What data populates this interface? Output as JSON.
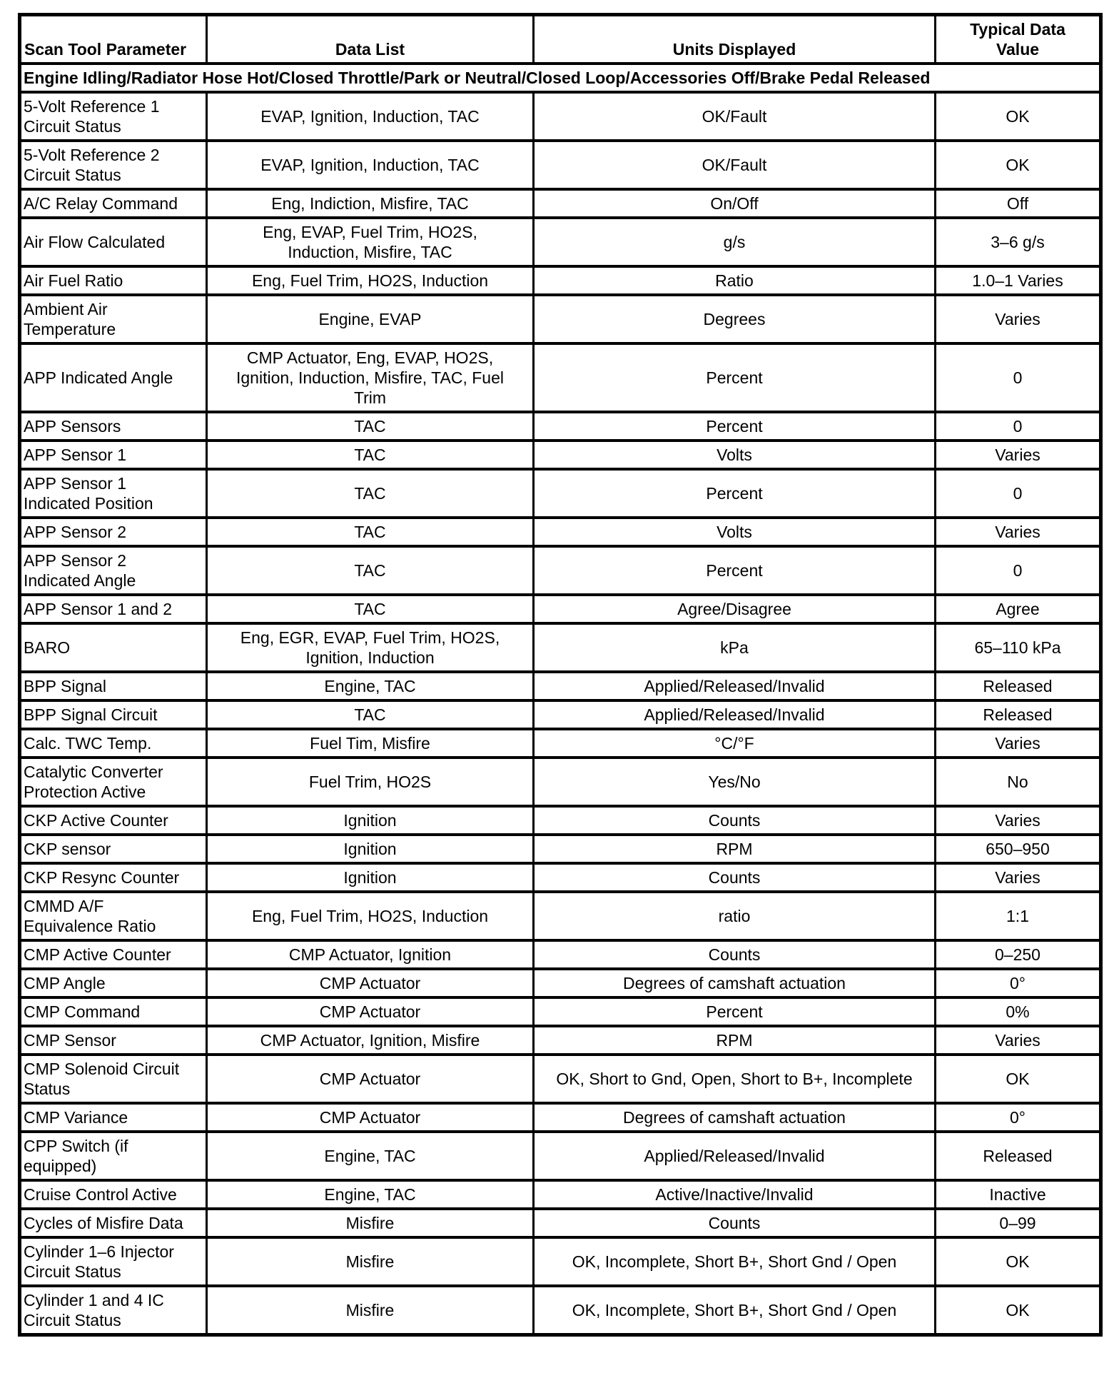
{
  "table": {
    "headers": [
      "Scan Tool Parameter",
      "Data List",
      "Units Displayed",
      "Typical Data\nValue"
    ],
    "section": "Engine Idling/Radiator Hose Hot/Closed Throttle/Park or Neutral/Closed Loop/Accessories Off/Brake Pedal Released",
    "rows": [
      [
        "5-Volt Reference 1\nCircuit Status",
        "EVAP, Ignition, Induction, TAC",
        "OK/Fault",
        "OK"
      ],
      [
        "5-Volt Reference 2\nCircuit Status",
        "EVAP, Ignition, Induction, TAC",
        "OK/Fault",
        "OK"
      ],
      [
        "A/C Relay Command",
        "Eng, Indiction, Misfire, TAC",
        "On/Off",
        "Off"
      ],
      [
        "Air Flow Calculated",
        "Eng, EVAP, Fuel Trim, HO2S,\nInduction, Misfire, TAC",
        "g/s",
        "3–6 g/s"
      ],
      [
        "Air Fuel Ratio",
        "Eng, Fuel Trim, HO2S, Induction",
        "Ratio",
        "1.0–1 Varies"
      ],
      [
        "Ambient Air\nTemperature",
        "Engine, EVAP",
        "Degrees",
        "Varies"
      ],
      [
        "APP Indicated Angle",
        "CMP Actuator, Eng, EVAP, HO2S,\nIgnition, Induction, Misfire, TAC, Fuel\nTrim",
        "Percent",
        "0"
      ],
      [
        "APP Sensors",
        "TAC",
        "Percent",
        "0"
      ],
      [
        "APP Sensor 1",
        "TAC",
        "Volts",
        "Varies"
      ],
      [
        "APP Sensor 1\nIndicated Position",
        "TAC",
        "Percent",
        "0"
      ],
      [
        "APP Sensor 2",
        "TAC",
        "Volts",
        "Varies"
      ],
      [
        "APP Sensor 2\nIndicated Angle",
        "TAC",
        "Percent",
        "0"
      ],
      [
        "APP Sensor 1 and 2",
        "TAC",
        "Agree/Disagree",
        "Agree"
      ],
      [
        "BARO",
        "Eng, EGR, EVAP, Fuel Trim, HO2S,\nIgnition, Induction",
        "kPa",
        "65–110 kPa"
      ],
      [
        "BPP Signal",
        "Engine, TAC",
        "Applied/Released/Invalid",
        "Released"
      ],
      [
        "BPP Signal Circuit",
        "TAC",
        "Applied/Released/Invalid",
        "Released"
      ],
      [
        "Calc. TWC Temp.",
        "Fuel Tim, Misfire",
        "°C/°F",
        "Varies"
      ],
      [
        "Catalytic Converter\nProtection Active",
        "Fuel Trim, HO2S",
        "Yes/No",
        "No"
      ],
      [
        "CKP Active Counter",
        "Ignition",
        "Counts",
        "Varies"
      ],
      [
        "CKP sensor",
        "Ignition",
        "RPM",
        "650–950"
      ],
      [
        "CKP Resync Counter",
        "Ignition",
        "Counts",
        "Varies"
      ],
      [
        "CMMD A/F\nEquivalence Ratio",
        "Eng, Fuel Trim, HO2S, Induction",
        "ratio",
        "1:1"
      ],
      [
        "CMP Active Counter",
        "CMP Actuator, Ignition",
        "Counts",
        "0–250"
      ],
      [
        "CMP Angle",
        "CMP Actuator",
        "Degrees of camshaft actuation",
        "0°"
      ],
      [
        "CMP Command",
        "CMP Actuator",
        "Percent",
        "0%"
      ],
      [
        "CMP Sensor",
        "CMP Actuator, Ignition, Misfire",
        "RPM",
        "Varies"
      ],
      [
        "CMP Solenoid Circuit\nStatus",
        "CMP Actuator",
        "OK, Short to Gnd, Open, Short to B+, Incomplete",
        "OK"
      ],
      [
        "CMP Variance",
        "CMP Actuator",
        "Degrees of camshaft actuation",
        "0°"
      ],
      [
        "CPP Switch (if\nequipped)",
        "Engine, TAC",
        "Applied/Released/Invalid",
        "Released"
      ],
      [
        "Cruise Control Active",
        "Engine, TAC",
        "Active/Inactive/Invalid",
        "Inactive"
      ],
      [
        "Cycles of Misfire Data",
        "Misfire",
        "Counts",
        "0–99"
      ],
      [
        "Cylinder 1–6 Injector\nCircuit Status",
        "Misfire",
        "OK, Incomplete, Short B+, Short Gnd / Open",
        "OK"
      ],
      [
        "Cylinder 1 and 4 IC\nCircuit Status",
        "Misfire",
        "OK, Incomplete, Short B+, Short Gnd / Open",
        "OK"
      ]
    ]
  }
}
